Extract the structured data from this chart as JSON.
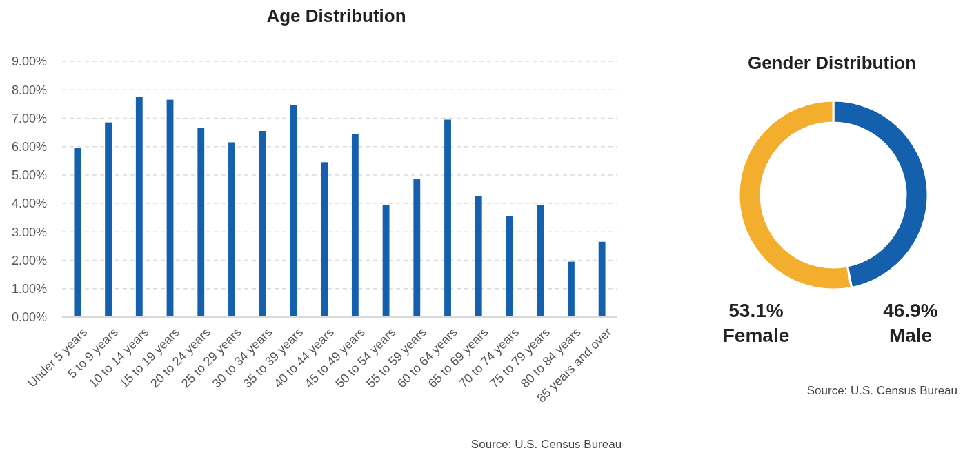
{
  "chart_data": [
    {
      "type": "bar",
      "title": "Age Distribution",
      "categories": [
        "Under 5 years",
        "5 to 9 years",
        "10 to 14 years",
        "15 to 19 years",
        "20 to 24 years",
        "25 to 29 years",
        "30 to 34 years",
        "35 to 39 years",
        "40 to 44 years",
        "45 to 49 years",
        "50 to 54 years",
        "55 to 59 years",
        "60 to 64 years",
        "65 to 69 years",
        "70 to 74 years",
        "75 to 79 years",
        "80 to 84 years",
        "85 years and over"
      ],
      "values": [
        5.95,
        6.85,
        7.75,
        7.65,
        6.65,
        6.15,
        6.55,
        7.45,
        5.45,
        6.45,
        3.95,
        4.85,
        6.95,
        4.25,
        3.55,
        3.95,
        1.95,
        2.65
      ],
      "color": "#1560ad",
      "ylim": [
        0,
        9
      ],
      "yticks": [
        {
          "value": 0,
          "label": "0.00%"
        },
        {
          "value": 1,
          "label": "1.00%"
        },
        {
          "value": 2,
          "label": "2.00%"
        },
        {
          "value": 3,
          "label": "3.00%"
        },
        {
          "value": 4,
          "label": "4.00%"
        },
        {
          "value": 5,
          "label": "5.00%"
        },
        {
          "value": 6,
          "label": "6.00%"
        },
        {
          "value": 7,
          "label": "7.00%"
        },
        {
          "value": 8,
          "label": "8.00%"
        },
        {
          "value": 9,
          "label": "9.00%"
        }
      ],
      "grid": "y",
      "annotations": [
        "Source: U.S. Census Bureau"
      ]
    },
    {
      "type": "donut",
      "title": "Gender Distribution",
      "categories": [
        "Male",
        "Female"
      ],
      "values": [
        46.9,
        53.1
      ],
      "colors": [
        "#1560ad",
        "#f2ae2c"
      ],
      "value_labels": [
        "46.9%",
        "53.1%"
      ],
      "annotations": [
        "Source: U.S. Census Bureau"
      ]
    }
  ]
}
